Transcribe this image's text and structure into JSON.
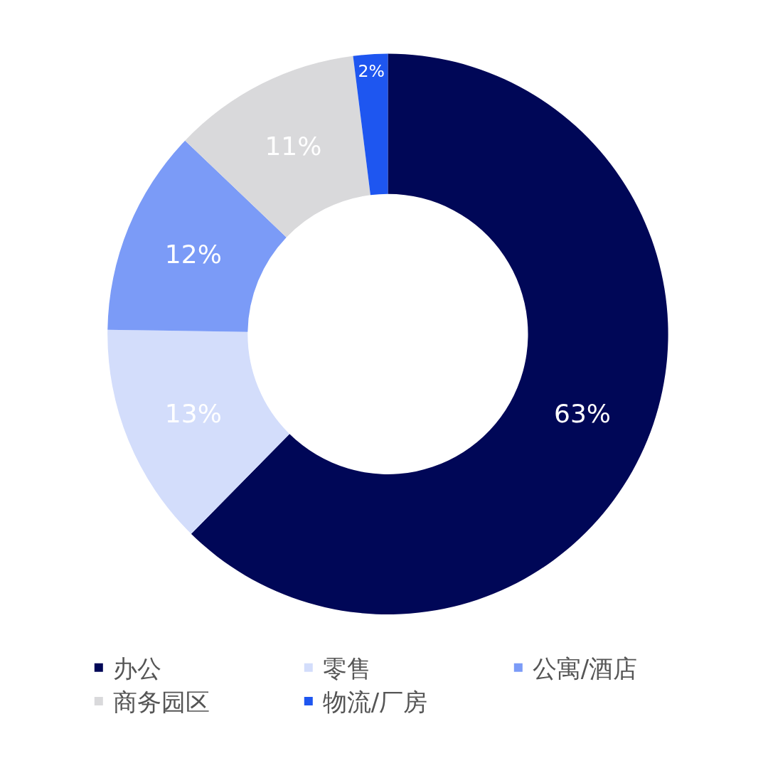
{
  "chart_data": {
    "type": "donut",
    "categories": [
      "办公",
      "零售",
      "公寓/酒店",
      "商务园区",
      "物流/厂房"
    ],
    "values": [
      63,
      13,
      12,
      11,
      2
    ],
    "colors": [
      "#000757",
      "#d3ddfb",
      "#7b9bf7",
      "#d9d9db",
      "#1e56f0"
    ],
    "value_labels": [
      "63%",
      "13%",
      "12%",
      "11%",
      "2%"
    ],
    "legend": "bottom"
  }
}
